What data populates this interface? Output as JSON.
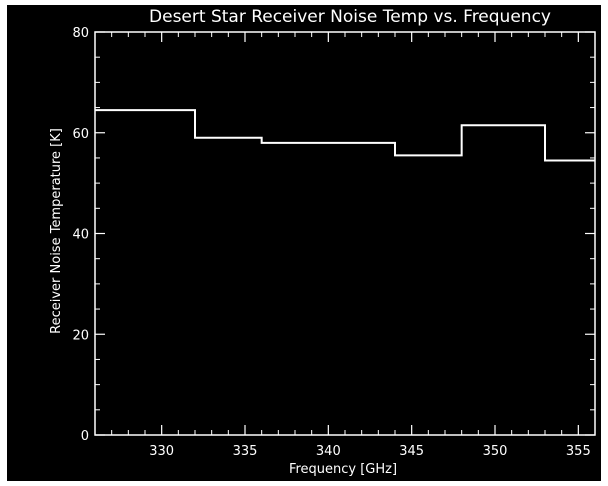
{
  "chart_data": {
    "type": "line",
    "title": "Desert Star Receiver Noise Temp vs. Frequency",
    "xlabel": "Frequency [GHz]",
    "ylabel": "Receiver Noise Temperature [K]",
    "xlim": [
      326,
      356
    ],
    "ylim": [
      0,
      80
    ],
    "x_ticks": [
      330,
      335,
      340,
      345,
      350,
      355
    ],
    "y_ticks": [
      0,
      20,
      40,
      60,
      80
    ],
    "grid": false,
    "step_bins": [
      {
        "x_start": 326,
        "x_end": 332,
        "y": 64.5
      },
      {
        "x_start": 332,
        "x_end": 336,
        "y": 59
      },
      {
        "x_start": 336,
        "x_end": 344,
        "y": 58
      },
      {
        "x_start": 344,
        "x_end": 348,
        "y": 55.5
      },
      {
        "x_start": 348,
        "x_end": 353,
        "y": 61.5
      },
      {
        "x_start": 353,
        "x_end": 356,
        "y": 54.5
      }
    ]
  },
  "colors": {
    "background": "#000000",
    "foreground": "#ffffff"
  }
}
